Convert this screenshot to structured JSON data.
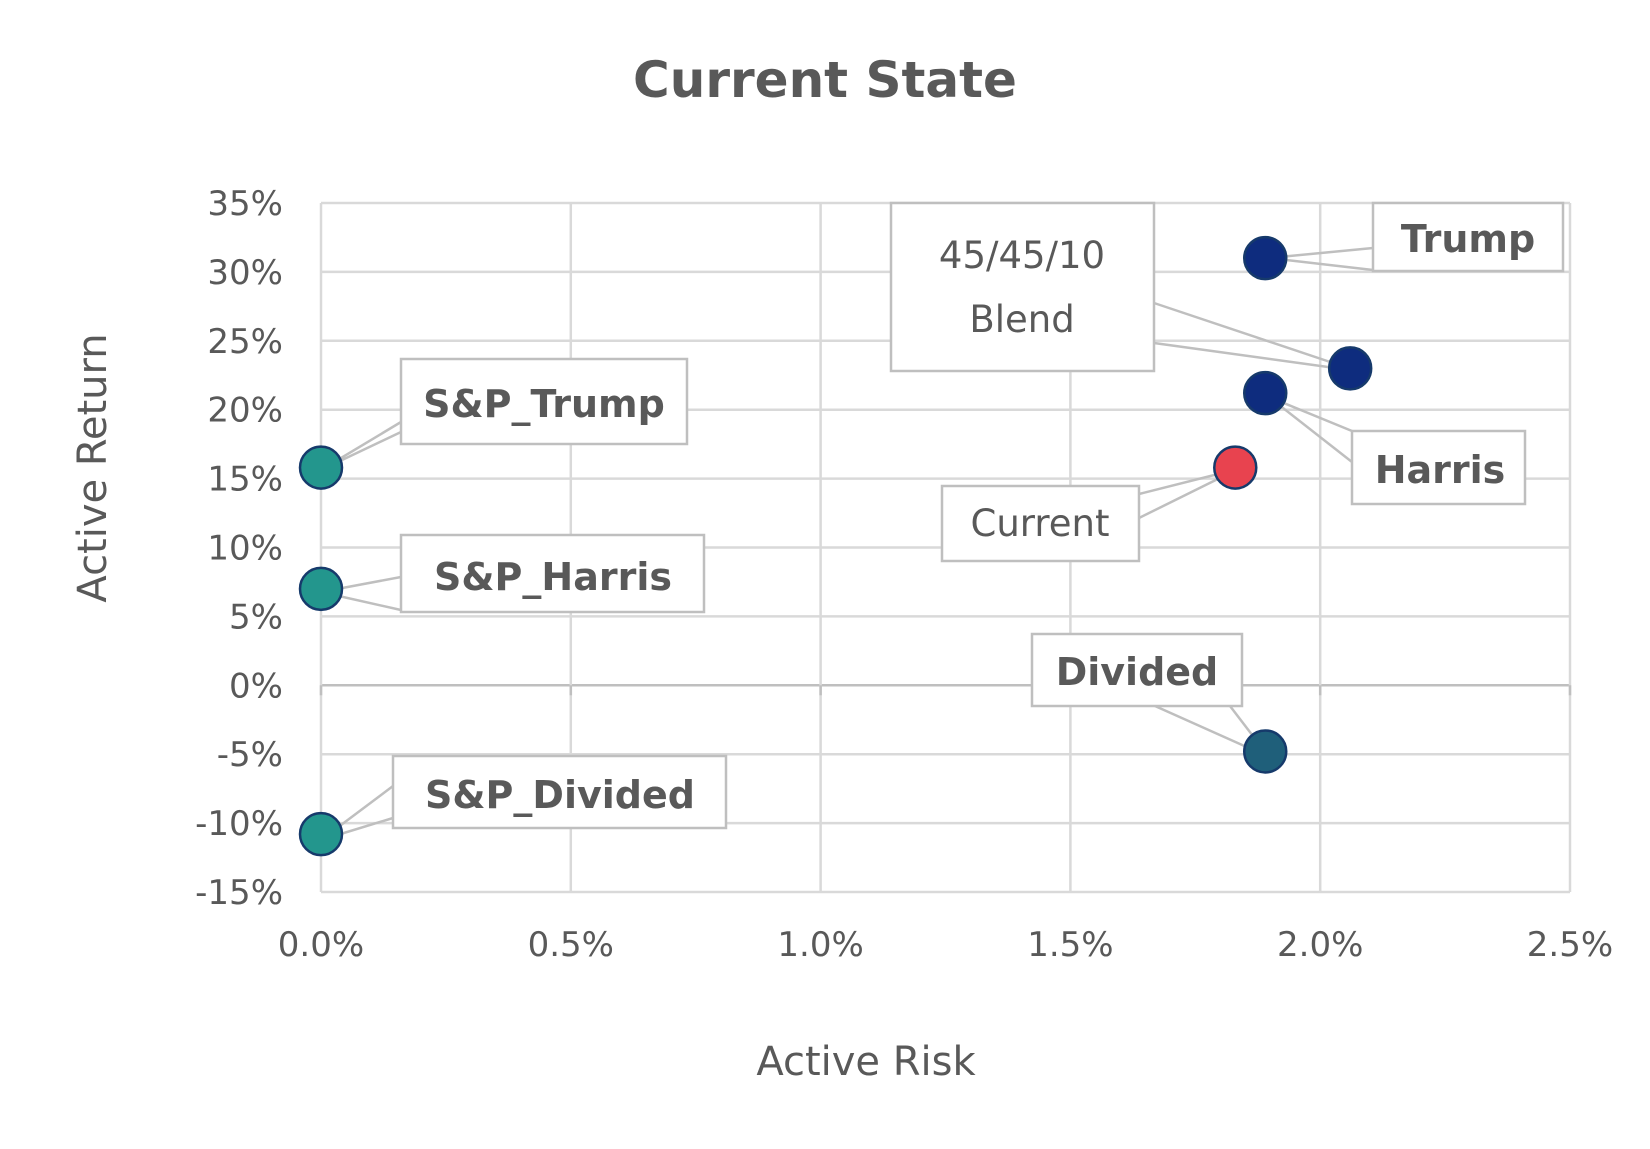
{
  "chart_data": {
    "type": "scatter",
    "title": "Current State",
    "xlabel": "Active Risk",
    "ylabel": "Active Return",
    "xlim": [
      0.0,
      2.5
    ],
    "ylim": [
      -15,
      35
    ],
    "x_ticks": [
      "0.0%",
      "0.5%",
      "1.0%",
      "1.5%",
      "2.0%",
      "2.5%"
    ],
    "y_ticks": [
      "35%",
      "30%",
      "25%",
      "20%",
      "15%",
      "10%",
      "5%",
      "0%",
      "-5%",
      "-10%",
      "-15%"
    ],
    "x_unit": "%",
    "y_unit": "%",
    "grid": true,
    "legend": "none",
    "points": [
      {
        "label": "Trump",
        "x": 1.89,
        "y": 31,
        "color": "#0e2c7e",
        "label_bold": true
      },
      {
        "label": "45/45/10 Blend",
        "label_lines": [
          "45/45/10",
          "Blend"
        ],
        "x": 2.06,
        "y": 23,
        "color": "#0e2c7e",
        "label_bold": false
      },
      {
        "label": "Harris",
        "x": 1.89,
        "y": 21.2,
        "color": "#0e2c7e",
        "label_bold": true
      },
      {
        "label": "Current",
        "x": 1.83,
        "y": 15.8,
        "color": "#e8434f",
        "label_bold": false
      },
      {
        "label": "Divided",
        "x": 1.89,
        "y": -4.8,
        "color": "#1f5f7a",
        "label_bold": true
      },
      {
        "label": "S&P_Trump",
        "x": 0.0,
        "y": 15.8,
        "color": "#23968d",
        "label_bold": true
      },
      {
        "label": "S&P_Harris",
        "x": 0.0,
        "y": 7,
        "color": "#23968d",
        "label_bold": true
      },
      {
        "label": "S&P_Divided",
        "x": 0.0,
        "y": -10.8,
        "color": "#23968d",
        "label_bold": true
      }
    ]
  }
}
